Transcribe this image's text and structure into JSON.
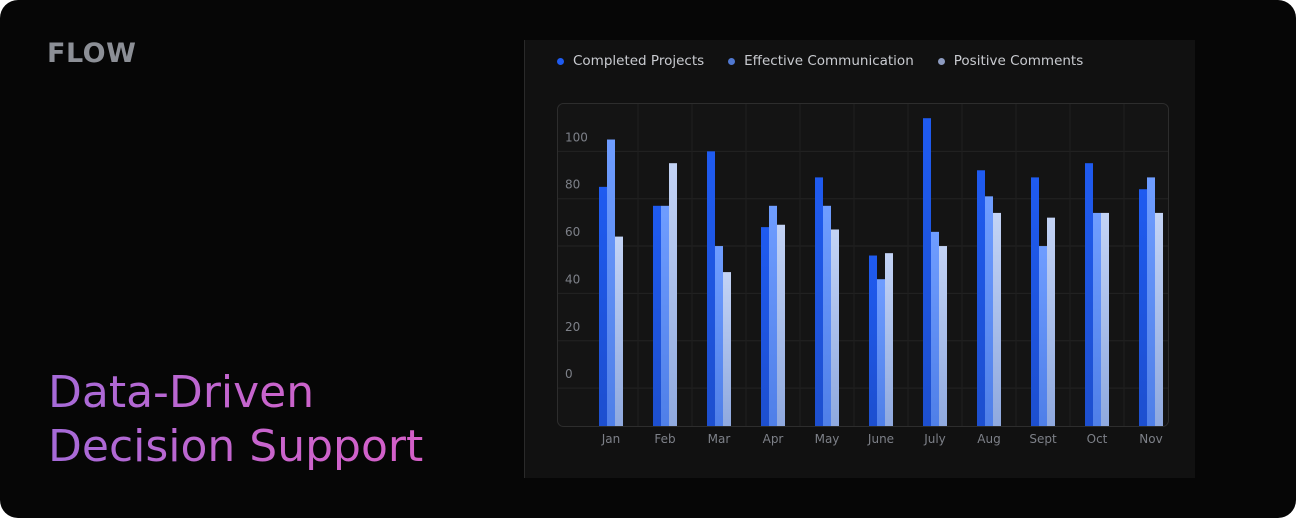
{
  "brand": {
    "logo": "FLOW"
  },
  "headline": {
    "line1": "Data-Driven",
    "line2": "Decision Support"
  },
  "colors": {
    "background": "#060606",
    "panel": "#111111",
    "series1": "#1f5bf0",
    "series2": "#6f9dff",
    "series3": "#c3d3f5"
  },
  "chart_data": {
    "type": "bar",
    "categories": [
      "Jan",
      "Feb",
      "Mar",
      "Apr",
      "May",
      "June",
      "July",
      "Aug",
      "Sept",
      "Oct",
      "Nov"
    ],
    "series": [
      {
        "name": "Completed Projects",
        "color": "#1f5bf0",
        "values": [
          85,
          77,
          100,
          68,
          89,
          56,
          114,
          92,
          89,
          95,
          84
        ]
      },
      {
        "name": "Effective Communication",
        "color": "#6f9dff",
        "values": [
          105,
          77,
          60,
          77,
          77,
          46,
          66,
          81,
          60,
          74,
          89
        ]
      },
      {
        "name": "Positive Comments",
        "color": "#c3d3f5",
        "values": [
          64,
          95,
          49,
          69,
          67,
          57,
          60,
          74,
          72,
          74,
          74
        ]
      }
    ],
    "yticks": [
      "100",
      "80",
      "60",
      "40",
      "20",
      "0"
    ],
    "ylim": [
      -16,
      120
    ],
    "legend_position": "top",
    "grid": true
  }
}
